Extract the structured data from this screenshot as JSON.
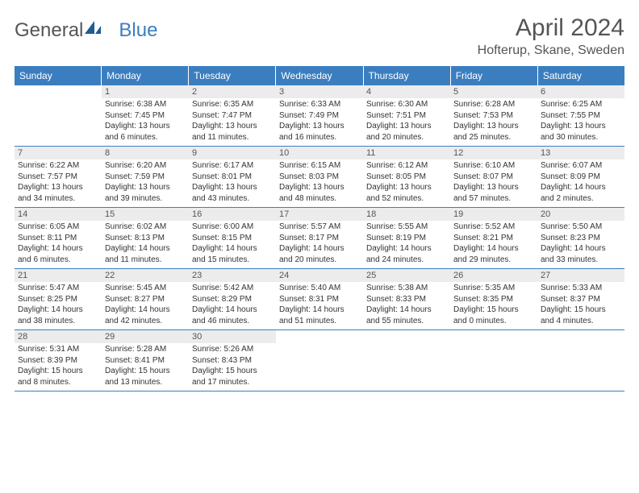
{
  "logo": {
    "text1": "General",
    "text2": "Blue",
    "icon_color": "#1f5c95"
  },
  "title": {
    "month": "April 2024",
    "location": "Hofterup, Skane, Sweden"
  },
  "colors": {
    "header_bg": "#3b7ec0",
    "header_fg": "#ffffff",
    "daynum_bg": "#ececec",
    "text": "#555555",
    "rule": "#3b7ec0"
  },
  "day_labels": [
    "Sunday",
    "Monday",
    "Tuesday",
    "Wednesday",
    "Thursday",
    "Friday",
    "Saturday"
  ],
  "weeks": [
    [
      {
        "n": "",
        "lines": []
      },
      {
        "n": "1",
        "lines": [
          "Sunrise: 6:38 AM",
          "Sunset: 7:45 PM",
          "Daylight: 13 hours and 6 minutes."
        ]
      },
      {
        "n": "2",
        "lines": [
          "Sunrise: 6:35 AM",
          "Sunset: 7:47 PM",
          "Daylight: 13 hours and 11 minutes."
        ]
      },
      {
        "n": "3",
        "lines": [
          "Sunrise: 6:33 AM",
          "Sunset: 7:49 PM",
          "Daylight: 13 hours and 16 minutes."
        ]
      },
      {
        "n": "4",
        "lines": [
          "Sunrise: 6:30 AM",
          "Sunset: 7:51 PM",
          "Daylight: 13 hours and 20 minutes."
        ]
      },
      {
        "n": "5",
        "lines": [
          "Sunrise: 6:28 AM",
          "Sunset: 7:53 PM",
          "Daylight: 13 hours and 25 minutes."
        ]
      },
      {
        "n": "6",
        "lines": [
          "Sunrise: 6:25 AM",
          "Sunset: 7:55 PM",
          "Daylight: 13 hours and 30 minutes."
        ]
      }
    ],
    [
      {
        "n": "7",
        "lines": [
          "Sunrise: 6:22 AM",
          "Sunset: 7:57 PM",
          "Daylight: 13 hours and 34 minutes."
        ]
      },
      {
        "n": "8",
        "lines": [
          "Sunrise: 6:20 AM",
          "Sunset: 7:59 PM",
          "Daylight: 13 hours and 39 minutes."
        ]
      },
      {
        "n": "9",
        "lines": [
          "Sunrise: 6:17 AM",
          "Sunset: 8:01 PM",
          "Daylight: 13 hours and 43 minutes."
        ]
      },
      {
        "n": "10",
        "lines": [
          "Sunrise: 6:15 AM",
          "Sunset: 8:03 PM",
          "Daylight: 13 hours and 48 minutes."
        ]
      },
      {
        "n": "11",
        "lines": [
          "Sunrise: 6:12 AM",
          "Sunset: 8:05 PM",
          "Daylight: 13 hours and 52 minutes."
        ]
      },
      {
        "n": "12",
        "lines": [
          "Sunrise: 6:10 AM",
          "Sunset: 8:07 PM",
          "Daylight: 13 hours and 57 minutes."
        ]
      },
      {
        "n": "13",
        "lines": [
          "Sunrise: 6:07 AM",
          "Sunset: 8:09 PM",
          "Daylight: 14 hours and 2 minutes."
        ]
      }
    ],
    [
      {
        "n": "14",
        "lines": [
          "Sunrise: 6:05 AM",
          "Sunset: 8:11 PM",
          "Daylight: 14 hours and 6 minutes."
        ]
      },
      {
        "n": "15",
        "lines": [
          "Sunrise: 6:02 AM",
          "Sunset: 8:13 PM",
          "Daylight: 14 hours and 11 minutes."
        ]
      },
      {
        "n": "16",
        "lines": [
          "Sunrise: 6:00 AM",
          "Sunset: 8:15 PM",
          "Daylight: 14 hours and 15 minutes."
        ]
      },
      {
        "n": "17",
        "lines": [
          "Sunrise: 5:57 AM",
          "Sunset: 8:17 PM",
          "Daylight: 14 hours and 20 minutes."
        ]
      },
      {
        "n": "18",
        "lines": [
          "Sunrise: 5:55 AM",
          "Sunset: 8:19 PM",
          "Daylight: 14 hours and 24 minutes."
        ]
      },
      {
        "n": "19",
        "lines": [
          "Sunrise: 5:52 AM",
          "Sunset: 8:21 PM",
          "Daylight: 14 hours and 29 minutes."
        ]
      },
      {
        "n": "20",
        "lines": [
          "Sunrise: 5:50 AM",
          "Sunset: 8:23 PM",
          "Daylight: 14 hours and 33 minutes."
        ]
      }
    ],
    [
      {
        "n": "21",
        "lines": [
          "Sunrise: 5:47 AM",
          "Sunset: 8:25 PM",
          "Daylight: 14 hours and 38 minutes."
        ]
      },
      {
        "n": "22",
        "lines": [
          "Sunrise: 5:45 AM",
          "Sunset: 8:27 PM",
          "Daylight: 14 hours and 42 minutes."
        ]
      },
      {
        "n": "23",
        "lines": [
          "Sunrise: 5:42 AM",
          "Sunset: 8:29 PM",
          "Daylight: 14 hours and 46 minutes."
        ]
      },
      {
        "n": "24",
        "lines": [
          "Sunrise: 5:40 AM",
          "Sunset: 8:31 PM",
          "Daylight: 14 hours and 51 minutes."
        ]
      },
      {
        "n": "25",
        "lines": [
          "Sunrise: 5:38 AM",
          "Sunset: 8:33 PM",
          "Daylight: 14 hours and 55 minutes."
        ]
      },
      {
        "n": "26",
        "lines": [
          "Sunrise: 5:35 AM",
          "Sunset: 8:35 PM",
          "Daylight: 15 hours and 0 minutes."
        ]
      },
      {
        "n": "27",
        "lines": [
          "Sunrise: 5:33 AM",
          "Sunset: 8:37 PM",
          "Daylight: 15 hours and 4 minutes."
        ]
      }
    ],
    [
      {
        "n": "28",
        "lines": [
          "Sunrise: 5:31 AM",
          "Sunset: 8:39 PM",
          "Daylight: 15 hours and 8 minutes."
        ]
      },
      {
        "n": "29",
        "lines": [
          "Sunrise: 5:28 AM",
          "Sunset: 8:41 PM",
          "Daylight: 15 hours and 13 minutes."
        ]
      },
      {
        "n": "30",
        "lines": [
          "Sunrise: 5:26 AM",
          "Sunset: 8:43 PM",
          "Daylight: 15 hours and 17 minutes."
        ]
      },
      {
        "n": "",
        "lines": []
      },
      {
        "n": "",
        "lines": []
      },
      {
        "n": "",
        "lines": []
      },
      {
        "n": "",
        "lines": []
      }
    ]
  ]
}
